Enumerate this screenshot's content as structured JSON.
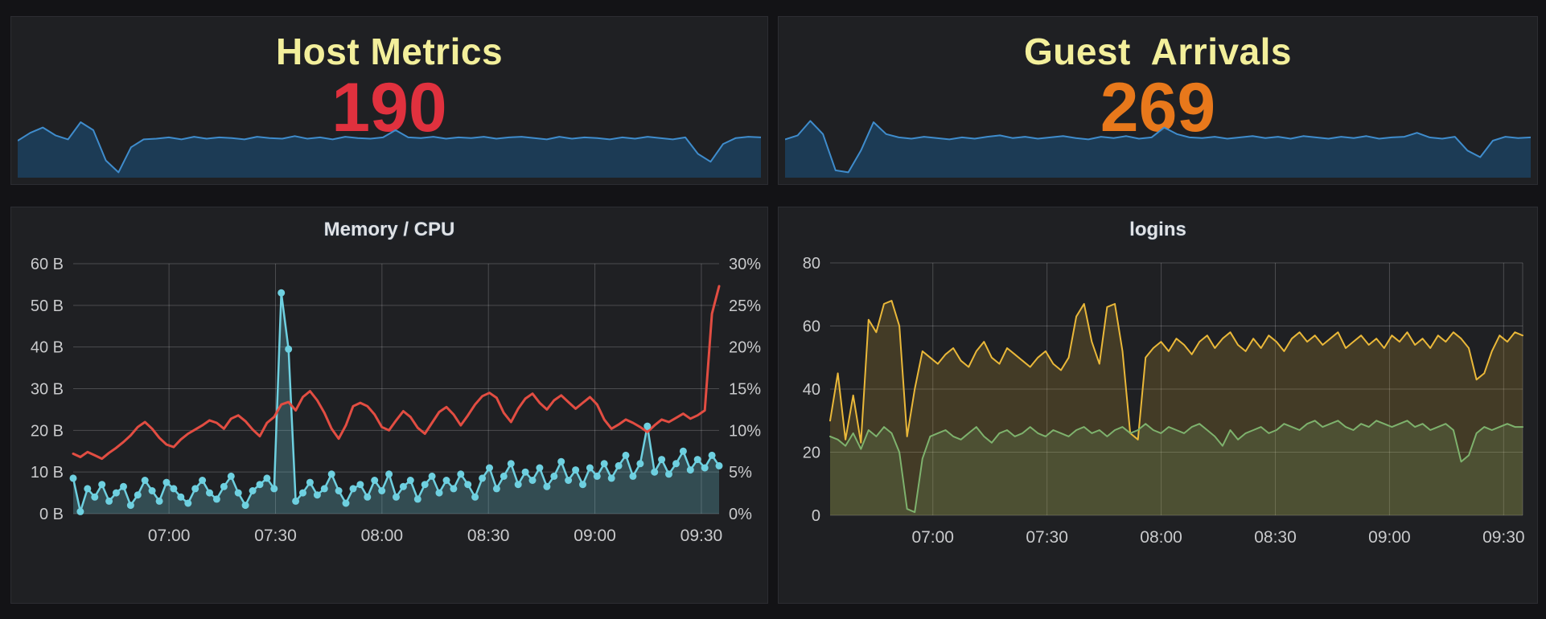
{
  "page": {
    "background": "#131316",
    "panel_background": "#1f2023",
    "panel_border": "#2c2d32",
    "grid_color": "rgba(255,255,255,0.20)",
    "tick_color": "#c9cacc",
    "title_color": "#e0e2e5"
  },
  "chart_data": [
    {
      "id": "host_metrics",
      "type": "sparkline-stat",
      "title": "Host Metrics",
      "title_color": "#f3ef9b",
      "value": "190",
      "value_color": "#e0313e",
      "line_color": "#3f8ccc",
      "fill_color": "rgba(28,61,89,0.95)",
      "values": [
        0.5,
        0.62,
        0.7,
        0.58,
        0.52,
        0.78,
        0.66,
        0.2,
        0.02,
        0.4,
        0.52,
        0.53,
        0.55,
        0.52,
        0.56,
        0.53,
        0.55,
        0.54,
        0.52,
        0.56,
        0.54,
        0.53,
        0.57,
        0.53,
        0.55,
        0.52,
        0.56,
        0.54,
        0.53,
        0.55,
        0.66,
        0.55,
        0.54,
        0.56,
        0.53,
        0.55,
        0.54,
        0.56,
        0.53,
        0.55,
        0.56,
        0.54,
        0.52,
        0.56,
        0.53,
        0.55,
        0.54,
        0.52,
        0.55,
        0.53,
        0.56,
        0.54,
        0.52,
        0.55,
        0.3,
        0.18,
        0.45,
        0.54,
        0.56,
        0.55
      ]
    },
    {
      "id": "guest_arrivals",
      "type": "sparkline-stat",
      "title": "Guest  Arrivals",
      "title_color": "#f3ef9b",
      "value": "269",
      "value_color": "#e8781b",
      "line_color": "#3f8ccc",
      "fill_color": "rgba(28,61,89,0.95)",
      "values": [
        0.52,
        0.58,
        0.8,
        0.6,
        0.05,
        0.02,
        0.35,
        0.78,
        0.6,
        0.55,
        0.53,
        0.56,
        0.54,
        0.52,
        0.55,
        0.53,
        0.56,
        0.58,
        0.54,
        0.56,
        0.53,
        0.55,
        0.57,
        0.54,
        0.52,
        0.56,
        0.54,
        0.57,
        0.53,
        0.55,
        0.7,
        0.6,
        0.55,
        0.54,
        0.56,
        0.53,
        0.55,
        0.57,
        0.54,
        0.56,
        0.53,
        0.57,
        0.55,
        0.53,
        0.56,
        0.54,
        0.57,
        0.53,
        0.55,
        0.56,
        0.62,
        0.55,
        0.53,
        0.56,
        0.35,
        0.25,
        0.5,
        0.56,
        0.54,
        0.55
      ]
    },
    {
      "id": "memory_cpu",
      "type": "line",
      "title": "Memory / CPU",
      "x_start": "06:33",
      "x_end": "09:35",
      "x_ticks": [
        "07:00",
        "07:30",
        "08:00",
        "08:30",
        "09:00",
        "09:30"
      ],
      "grid": true,
      "legend": "none",
      "y_left": {
        "min": 0,
        "max": 60,
        "unit": "B",
        "labels": [
          "0 B",
          "10 B",
          "20 B",
          "30 B",
          "40 B",
          "50 B",
          "60 B"
        ]
      },
      "y_right": {
        "min": 0,
        "max": 30,
        "unit": "%",
        "labels": [
          "0%",
          "5%",
          "10%",
          "15%",
          "20%",
          "25%",
          "30%"
        ]
      },
      "series": [
        {
          "name": "memory",
          "axis": "left",
          "color": "#6ed0e0",
          "fill": "rgba(110,208,224,0.25)",
          "points": true,
          "width": 2.5,
          "values": [
            8.5,
            0.5,
            6,
            4,
            7,
            3,
            5,
            6.5,
            2,
            4.5,
            8,
            5.5,
            3,
            7.5,
            6,
            4,
            2.5,
            6,
            8,
            5,
            3.5,
            6.5,
            9,
            5,
            2,
            5.5,
            7,
            8.5,
            6,
            53,
            39.5,
            3,
            5,
            7.5,
            4.5,
            6,
            9.5,
            5.5,
            2.5,
            6,
            7,
            4,
            8,
            5.5,
            9.5,
            4,
            6.5,
            8,
            3.5,
            7,
            9,
            5,
            8,
            6,
            9.5,
            7,
            4,
            8.5,
            11,
            6,
            9,
            12,
            7,
            10,
            8,
            11,
            6.5,
            9,
            12.5,
            8,
            10.5,
            7,
            11,
            9,
            12,
            8.5,
            11.5,
            14,
            9,
            12,
            21,
            10,
            13,
            9.5,
            12,
            15,
            10.5,
            13,
            11,
            14,
            11.5
          ]
        },
        {
          "name": "cpu",
          "axis": "right",
          "color": "#e24d42",
          "width": 3,
          "values": [
            7.2,
            6.8,
            7.4,
            7.0,
            6.6,
            7.3,
            7.9,
            8.6,
            9.4,
            10.4,
            11.0,
            10.2,
            9.1,
            8.3,
            8.0,
            8.9,
            9.6,
            10.1,
            10.6,
            11.2,
            10.9,
            10.2,
            11.4,
            11.8,
            11.1,
            10.1,
            9.3,
            10.9,
            11.6,
            13.1,
            13.4,
            12.4,
            14.0,
            14.7,
            13.6,
            12.1,
            10.2,
            9.0,
            10.6,
            12.9,
            13.3,
            12.9,
            11.9,
            10.4,
            10.0,
            11.2,
            12.3,
            11.6,
            10.3,
            9.6,
            10.9,
            12.2,
            12.8,
            11.9,
            10.6,
            11.8,
            13.1,
            14.1,
            14.5,
            13.9,
            12.1,
            11.0,
            12.6,
            13.8,
            14.4,
            13.3,
            12.5,
            13.6,
            14.2,
            13.4,
            12.6,
            13.3,
            14.0,
            13.1,
            11.3,
            10.2,
            10.7,
            11.3,
            10.9,
            10.4,
            9.8,
            10.6,
            11.3,
            11.0,
            11.5,
            12.0,
            11.4,
            11.8,
            12.4,
            24.0,
            27.3
          ]
        }
      ]
    },
    {
      "id": "logins",
      "type": "line",
      "title": "logins",
      "x_start": "06:33",
      "x_end": "09:35",
      "x_ticks": [
        "07:00",
        "07:30",
        "08:00",
        "08:30",
        "09:00",
        "09:30"
      ],
      "grid": true,
      "legend": "none",
      "right_border": true,
      "y_left": {
        "min": 0,
        "max": 80,
        "unit": "",
        "labels": [
          "0",
          "20",
          "40",
          "60",
          "80"
        ]
      },
      "series": [
        {
          "name": "logins-yellow",
          "axis": "left",
          "color": "#eab839",
          "fill": "rgba(234,184,57,0.18)",
          "width": 2,
          "values": [
            30,
            45,
            24,
            38,
            23,
            62,
            58,
            67,
            68,
            60,
            25,
            40,
            52,
            50,
            48,
            51,
            53,
            49,
            47,
            52,
            55,
            50,
            48,
            53,
            51,
            49,
            47,
            50,
            52,
            48,
            46,
            50,
            63,
            67,
            55,
            48,
            66,
            67,
            52,
            26,
            24,
            50,
            53,
            55,
            52,
            56,
            54,
            51,
            55,
            57,
            53,
            56,
            58,
            54,
            52,
            56,
            53,
            57,
            55,
            52,
            56,
            58,
            55,
            57,
            54,
            56,
            58,
            53,
            55,
            57,
            54,
            56,
            53,
            57,
            55,
            58,
            54,
            56,
            53,
            57,
            55,
            58,
            56,
            53,
            43,
            45,
            52,
            57,
            55,
            58,
            57
          ]
        },
        {
          "name": "logins-green",
          "axis": "left",
          "color": "#7eb26d",
          "fill": "rgba(126,178,109,0.18)",
          "width": 2,
          "values": [
            25,
            24,
            22,
            26,
            21,
            27,
            25,
            28,
            26,
            20,
            2,
            1,
            18,
            25,
            26,
            27,
            25,
            24,
            26,
            28,
            25,
            23,
            26,
            27,
            25,
            26,
            28,
            26,
            25,
            27,
            26,
            25,
            27,
            28,
            26,
            27,
            25,
            27,
            28,
            26,
            27,
            29,
            27,
            26,
            28,
            27,
            26,
            28,
            29,
            27,
            25,
            22,
            27,
            24,
            26,
            27,
            28,
            26,
            27,
            29,
            28,
            27,
            29,
            30,
            28,
            29,
            30,
            28,
            27,
            29,
            28,
            30,
            29,
            28,
            29,
            30,
            28,
            29,
            27,
            28,
            29,
            27,
            17,
            19,
            26,
            28,
            27,
            28,
            29,
            28,
            28
          ]
        }
      ]
    }
  ]
}
